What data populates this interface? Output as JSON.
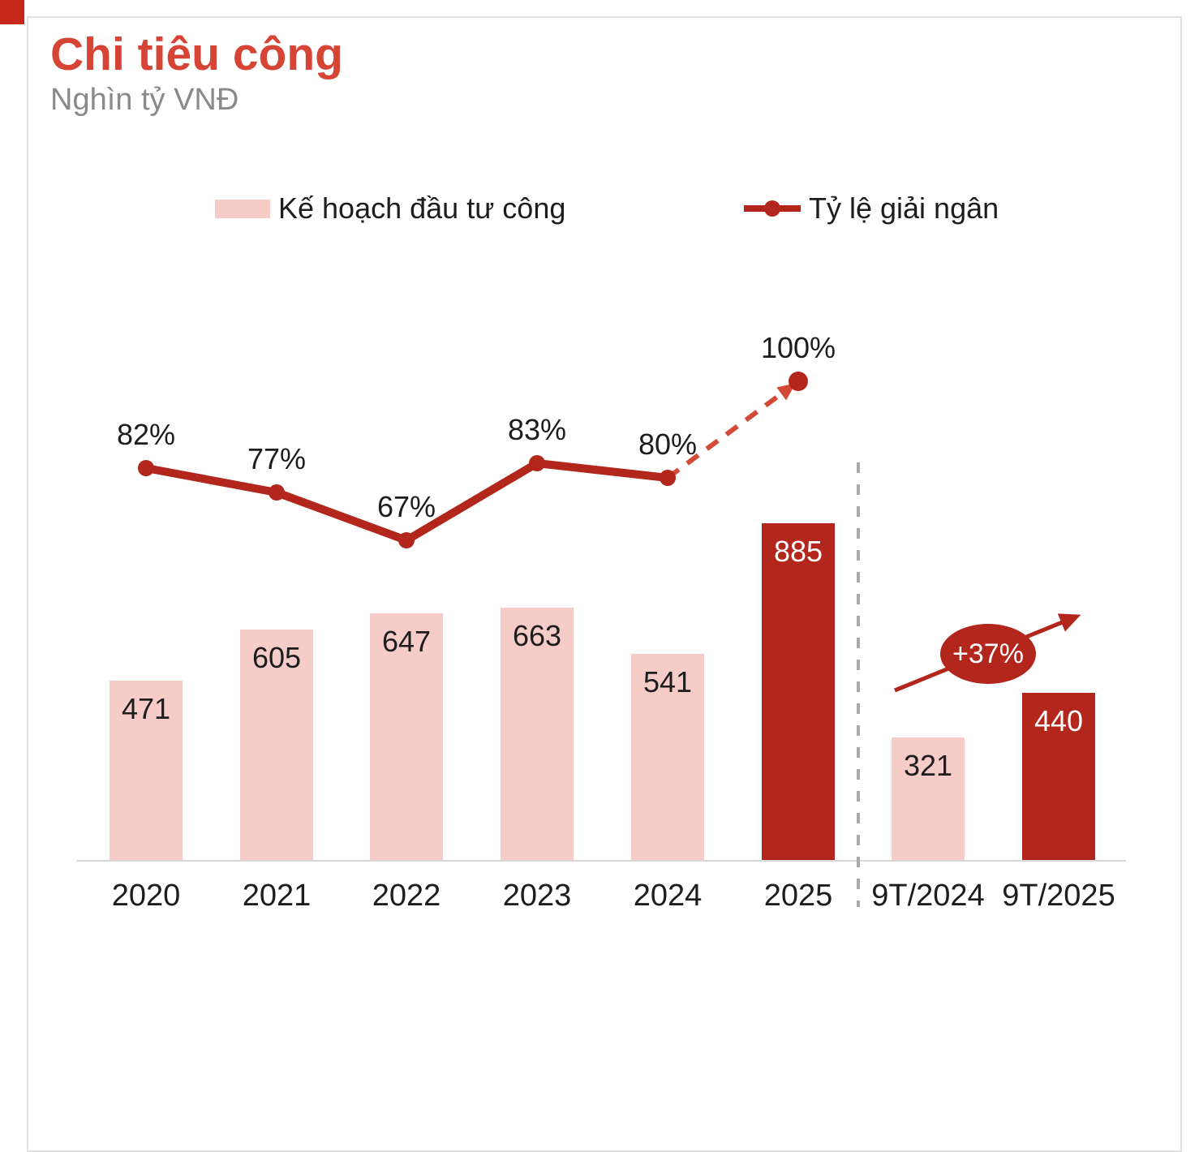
{
  "page": {
    "title": "Chi tiêu công",
    "subtitle": "Nghìn tỷ VNĐ"
  },
  "legend": {
    "bar_label": "Kế hoạch đầu tư công",
    "line_label": "Tỷ lệ giải ngân"
  },
  "annotation": {
    "growth_label": "+37%"
  },
  "colors": {
    "title_red": "#d54434",
    "bar_pink": "#f5ccc8",
    "bar_dark_red": "#b2261c",
    "line_red": "#b2261c",
    "dashed_projection_red": "#d44a39",
    "divider_gray": "#a9a9a9",
    "axis_gray": "#d8d8d8",
    "subtitle_gray": "#8a8a8a",
    "text_dark": "#1d1d1d"
  },
  "chart_data": {
    "type": "bar+line",
    "title": "Chi tiêu công",
    "unit": "Nghìn tỷ VNĐ",
    "legend_position": "top",
    "gridlines": false,
    "categories": [
      "2020",
      "2021",
      "2022",
      "2023",
      "2024",
      "2025",
      "9T/2024",
      "9T/2025"
    ],
    "series": [
      {
        "name": "Kế hoạch đầu tư công",
        "type": "bar",
        "values": [
          471,
          605,
          647,
          663,
          541,
          885,
          321,
          440
        ],
        "value_labels": [
          "471",
          "605",
          "647",
          "663",
          "541",
          "885",
          "321",
          "440"
        ],
        "highlighted": [
          false,
          false,
          false,
          false,
          false,
          true,
          false,
          true
        ]
      },
      {
        "name": "Tỷ lệ giải ngân",
        "type": "line",
        "unit": "%",
        "values": [
          82,
          77,
          67,
          83,
          80,
          100,
          null,
          null
        ],
        "point_labels": [
          "82%",
          "77%",
          "67%",
          "83%",
          "80%",
          "100%",
          null,
          null
        ],
        "dashed_from_index": 4
      }
    ],
    "divider_after_index": 5,
    "annotations": [
      {
        "text": "+37%",
        "from_category": "9T/2024",
        "to_category": "9T/2025",
        "shape": "ellipse-with-arrow"
      }
    ]
  }
}
